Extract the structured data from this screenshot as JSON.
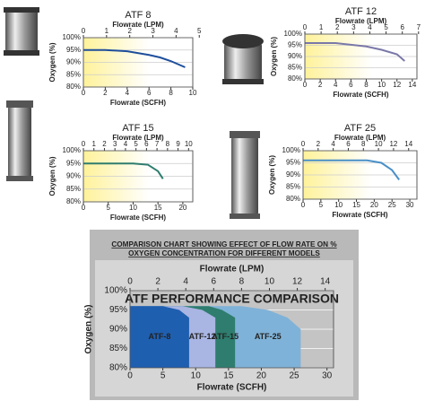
{
  "chart_data": [
    {
      "type": "line",
      "title": "ATF 8",
      "xlabel": "Flowrate (SCFH)",
      "x2label": "Flowrate (LPM)",
      "ylabel": "Oxygen (%)",
      "x": [
        0,
        2,
        4,
        6,
        7,
        8,
        9.3
      ],
      "values": [
        95,
        95,
        94.5,
        93,
        92,
        90.5,
        88
      ],
      "color": "#1f4f9c",
      "xlim": [
        0,
        10
      ],
      "xticks": [
        0,
        2,
        4,
        6,
        8,
        10
      ],
      "x2lim": [
        0,
        4.72
      ],
      "x2ticks": [
        0,
        1,
        2,
        3,
        4,
        5
      ],
      "ylim": [
        80,
        100
      ],
      "yticks": [
        {
          "value": 80,
          "label": "80%"
        },
        {
          "value": 85,
          "label": "85%"
        },
        {
          "value": 90,
          "label": "90%"
        },
        {
          "value": 95,
          "label": "95%"
        },
        {
          "value": 100,
          "label": "100%"
        }
      ],
      "grid": true
    },
    {
      "type": "line",
      "title": "ATF 12",
      "xlabel": "Flowrate (SCFH)",
      "x2label": "Flowrate (LPM)",
      "ylabel": "Oxygen (%)",
      "x": [
        0,
        4,
        8,
        10,
        12,
        13
      ],
      "values": [
        96,
        96,
        94.5,
        93,
        91,
        88
      ],
      "color": "#7a78a8",
      "xlim": [
        0,
        14.6
      ],
      "xticks": [
        0,
        2,
        4,
        6,
        8,
        10,
        12,
        14
      ],
      "x2lim": [
        0,
        6.9
      ],
      "x2ticks": [
        0,
        1,
        2,
        3,
        4,
        5,
        6,
        7
      ],
      "ylim": [
        80,
        100
      ],
      "yticks": [
        {
          "value": 80,
          "label": "80%"
        },
        {
          "value": 85,
          "label": "85%"
        },
        {
          "value": 90,
          "label": "90%"
        },
        {
          "value": 95,
          "label": "95%"
        },
        {
          "value": 100,
          "label": "100%"
        }
      ],
      "grid": true
    },
    {
      "type": "line",
      "title": "ATF 15",
      "xlabel": "Flowrate (SCFH)",
      "x2label": "Flowrate (LPM)",
      "ylabel": "Oxygen (%)",
      "x": [
        0,
        5,
        10,
        13,
        15,
        16
      ],
      "values": [
        95,
        95,
        95,
        94.5,
        92,
        89
      ],
      "color": "#2e7d6e",
      "xlim": [
        0,
        22
      ],
      "xticks": [
        0,
        5,
        10,
        15,
        20
      ],
      "x2lim": [
        0,
        10.4
      ],
      "x2ticks": [
        0,
        1,
        2,
        3,
        4,
        5,
        6,
        7,
        8,
        9,
        10
      ],
      "ylim": [
        80,
        100
      ],
      "yticks": [
        {
          "value": 80,
          "label": "80%"
        },
        {
          "value": 85,
          "label": "85%"
        },
        {
          "value": 90,
          "label": "90%"
        },
        {
          "value": 95,
          "label": "95%"
        },
        {
          "value": 100,
          "label": "100%"
        }
      ],
      "grid": true
    },
    {
      "type": "line",
      "title": "ATF 25",
      "xlabel": "Flowrate (SCFH)",
      "x2label": "Flowrate (LPM)",
      "ylabel": "Oxygen (%)",
      "x": [
        0,
        10,
        18,
        22,
        25,
        27
      ],
      "values": [
        96,
        96,
        96,
        95,
        92,
        88
      ],
      "color": "#4a90c8",
      "xlim": [
        0,
        32
      ],
      "xticks": [
        0,
        5,
        10,
        15,
        20,
        25,
        30
      ],
      "x2lim": [
        0,
        15.1
      ],
      "x2ticks": [
        0,
        2,
        4,
        6,
        8,
        10,
        12,
        14
      ],
      "ylim": [
        80,
        100
      ],
      "yticks": [
        {
          "value": 80,
          "label": "80%"
        },
        {
          "value": 85,
          "label": "85%"
        },
        {
          "value": 90,
          "label": "90%"
        },
        {
          "value": 95,
          "label": "95%"
        },
        {
          "value": 100,
          "label": "100%"
        }
      ],
      "grid": true
    },
    {
      "type": "area",
      "heading": "COMPARISON CHART SHOWING EFFECT OF FLOW RATE ON % OXYGEN CONCENTRATION FOR DIFFERENT MODELS",
      "title": "ATF PERFORMANCE COMPARISON",
      "xlabel": "Flowrate (SCFH)",
      "x2label": "Flowrate (LPM)",
      "ylabel": "Oxygen (%)",
      "series": [
        {
          "name": "ATF-25",
          "color": "#7fb2d8",
          "x": [
            0,
            17,
            21,
            24,
            26
          ],
          "values": [
            96,
            96,
            95,
            93,
            90
          ]
        },
        {
          "name": "ATF-15",
          "color": "#2e7d6e",
          "x": [
            0,
            12,
            14,
            16
          ],
          "values": [
            96,
            96,
            95,
            93
          ]
        },
        {
          "name": "ATF-12",
          "color": "#a9b5e2",
          "x": [
            0,
            8,
            11,
            13
          ],
          "values": [
            96,
            96,
            95,
            93
          ]
        },
        {
          "name": "ATF-8",
          "color": "#1f5fb0",
          "x": [
            0,
            5,
            7.5,
            9
          ],
          "values": [
            96,
            96,
            95,
            93
          ]
        }
      ],
      "xlim": [
        0,
        31
      ],
      "xticks": [
        0,
        5,
        10,
        15,
        20,
        25,
        30
      ],
      "x2lim": [
        0,
        14.6
      ],
      "x2ticks": [
        0,
        2,
        4,
        6,
        8,
        10,
        12,
        14
      ],
      "ylim": [
        80,
        100
      ],
      "yticks": [
        {
          "value": 80,
          "label": "80%"
        },
        {
          "value": 85,
          "label": "85%"
        },
        {
          "value": 90,
          "label": "90%"
        },
        {
          "value": 95,
          "label": "95%"
        },
        {
          "value": 100,
          "label": "100%"
        }
      ],
      "grid": true
    }
  ]
}
